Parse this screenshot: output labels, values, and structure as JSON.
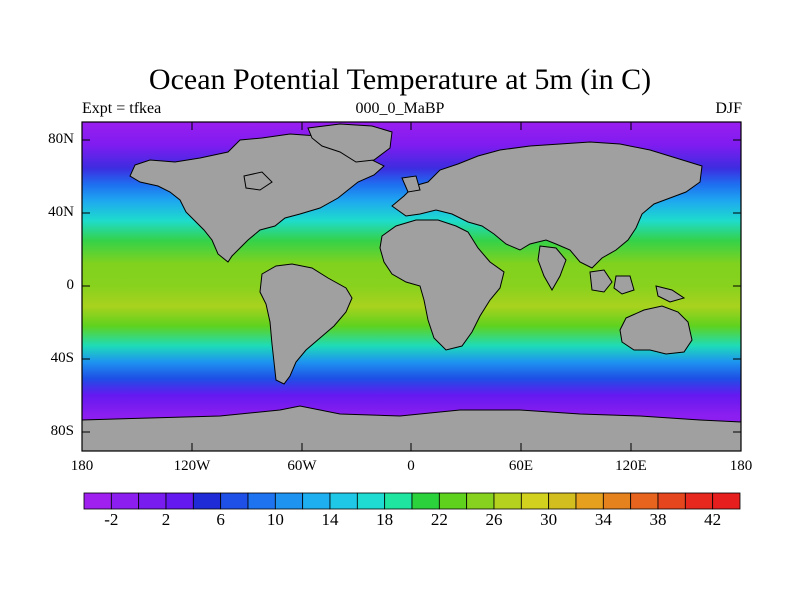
{
  "title": "Ocean Potential Temperature at 5m (in C)",
  "left_subtitle": "Expt = tfkea",
  "center_subtitle": "000_0_MaBP",
  "right_subtitle": "DJF",
  "lat_labels": [
    "80N",
    "40N",
    "0",
    "40S",
    "80S"
  ],
  "lon_labels": [
    "180",
    "120W",
    "60W",
    "0",
    "60E",
    "120E",
    "180"
  ],
  "colorbar": {
    "labels": [
      "-2",
      "2",
      "6",
      "10",
      "14",
      "18",
      "22",
      "26",
      "30",
      "34",
      "38",
      "42"
    ],
    "colors": [
      "#a020f0",
      "#8c1ef0",
      "#781cf0",
      "#6419f0",
      "#1e2bd6",
      "#1e4fe6",
      "#1e73f0",
      "#1e93f0",
      "#1eaff0",
      "#1ec8e6",
      "#1edcd2",
      "#1ee6a0",
      "#2bd23c",
      "#5fd21e",
      "#87d21e",
      "#b4d21e",
      "#d2d21e",
      "#d2be1e",
      "#e6a01e",
      "#e6821e",
      "#e6641e",
      "#e6461e",
      "#e6281e",
      "#e61e1e"
    ]
  },
  "land_color": "#a0a0a0"
}
